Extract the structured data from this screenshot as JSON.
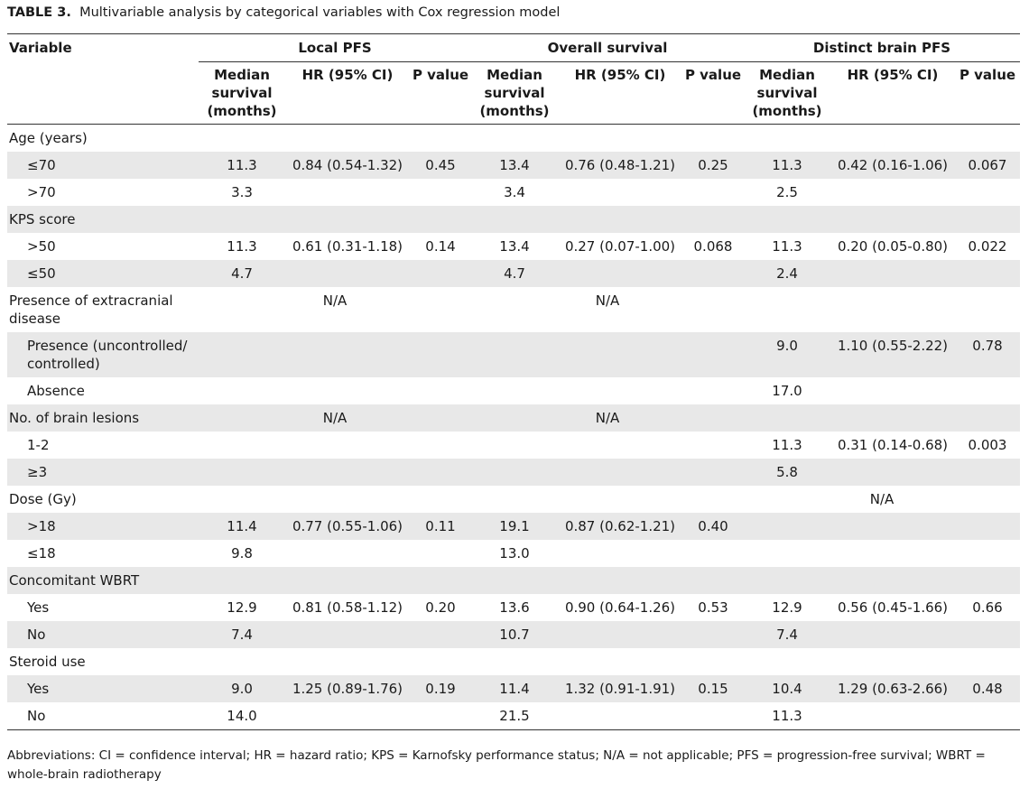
{
  "caption": {
    "label": "TABLE 3.",
    "text": "Multivariable analysis by categorical variables with Cox regression model"
  },
  "header": {
    "variable": "Variable",
    "groups": [
      "Local PFS",
      "Overall survival",
      "Distinct brain PFS"
    ],
    "sub": {
      "median": "Median survival (months)",
      "hr": "HR (95% CI)",
      "p": "P value"
    }
  },
  "rows": [
    {
      "label": "Age (years)",
      "indent": false,
      "shade": false,
      "cells": [
        "",
        "",
        "",
        "",
        "",
        "",
        "",
        "",
        ""
      ]
    },
    {
      "label": "≤70",
      "indent": true,
      "shade": true,
      "cells": [
        "11.3",
        "0.84 (0.54-1.32)",
        "0.45",
        "13.4",
        "0.76 (0.48-1.21)",
        "0.25",
        "11.3",
        "0.42 (0.16-1.06)",
        "0.067"
      ]
    },
    {
      "label": ">70",
      "indent": true,
      "shade": false,
      "cells": [
        "3.3",
        "",
        "",
        "3.4",
        "",
        "",
        "2.5",
        "",
        ""
      ]
    },
    {
      "label": "KPS score",
      "indent": false,
      "shade": true,
      "cells": [
        "",
        "",
        "",
        "",
        "",
        "",
        "",
        "",
        ""
      ]
    },
    {
      "label": ">50",
      "indent": true,
      "shade": false,
      "cells": [
        "11.3",
        "0.61 (0.31-1.18)",
        "0.14",
        "13.4",
        "0.27 (0.07-1.00)",
        "0.068",
        "11.3",
        "0.20 (0.05-0.80)",
        "0.022"
      ]
    },
    {
      "label": "≤50",
      "indent": true,
      "shade": true,
      "cells": [
        "4.7",
        "",
        "",
        "4.7",
        "",
        "",
        "2.4",
        "",
        ""
      ]
    },
    {
      "label": "Presence of extracranial disease",
      "indent": false,
      "shade": false,
      "spans": [
        "N/A",
        "N/A",
        ""
      ]
    },
    {
      "label": "Presence (uncontrolled/ controlled)",
      "indent": true,
      "shade": true,
      "cells": [
        "",
        "",
        "",
        "",
        "",
        "",
        "9.0",
        "1.10 (0.55-2.22)",
        "0.78"
      ]
    },
    {
      "label": "Absence",
      "indent": true,
      "shade": false,
      "cells": [
        "",
        "",
        "",
        "",
        "",
        "",
        "17.0",
        "",
        ""
      ]
    },
    {
      "label": "No. of brain lesions",
      "indent": false,
      "shade": true,
      "spans": [
        "N/A",
        "N/A",
        ""
      ]
    },
    {
      "label": "1-2",
      "indent": true,
      "shade": false,
      "cells": [
        "",
        "",
        "",
        "",
        "",
        "",
        "11.3",
        "0.31 (0.14-0.68)",
        "0.003"
      ]
    },
    {
      "label": "≥3",
      "indent": true,
      "shade": true,
      "cells": [
        "",
        "",
        "",
        "",
        "",
        "",
        "5.8",
        "",
        ""
      ]
    },
    {
      "label": "Dose (Gy)",
      "indent": false,
      "shade": false,
      "spans": [
        "",
        "",
        "N/A"
      ]
    },
    {
      "label": ">18",
      "indent": true,
      "shade": true,
      "cells": [
        "11.4",
        "0.77 (0.55-1.06)",
        "0.11",
        "19.1",
        "0.87 (0.62-1.21)",
        "0.40",
        "",
        "",
        ""
      ]
    },
    {
      "label": "≤18",
      "indent": true,
      "shade": false,
      "cells": [
        "9.8",
        "",
        "",
        "13.0",
        "",
        "",
        "",
        "",
        ""
      ]
    },
    {
      "label": "Concomitant WBRT",
      "indent": false,
      "shade": true,
      "cells": [
        "",
        "",
        "",
        "",
        "",
        "",
        "",
        "",
        ""
      ]
    },
    {
      "label": "Yes",
      "indent": true,
      "shade": false,
      "cells": [
        "12.9",
        "0.81 (0.58-1.12)",
        "0.20",
        "13.6",
        "0.90 (0.64-1.26)",
        "0.53",
        "12.9",
        "0.56 (0.45-1.66)",
        "0.66"
      ]
    },
    {
      "label": "No",
      "indent": true,
      "shade": true,
      "cells": [
        "7.4",
        "",
        "",
        "10.7",
        "",
        "",
        "7.4",
        "",
        ""
      ]
    },
    {
      "label": "Steroid use",
      "indent": false,
      "shade": false,
      "cells": [
        "",
        "",
        "",
        "",
        "",
        "",
        "",
        "",
        ""
      ]
    },
    {
      "label": "Yes",
      "indent": true,
      "shade": true,
      "cells": [
        "9.0",
        "1.25 (0.89-1.76)",
        "0.19",
        "11.4",
        "1.32 (0.91-1.91)",
        "0.15",
        "10.4",
        "1.29 (0.63-2.66)",
        "0.48"
      ]
    },
    {
      "label": "No",
      "indent": true,
      "shade": false,
      "cells": [
        "14.0",
        "",
        "",
        "21.5",
        "",
        "",
        "11.3",
        "",
        ""
      ]
    }
  ],
  "footnote": "Abbreviations: CI = confidence interval; HR = hazard ratio; KPS = Karnofsky performance status; N/A = not applicable; PFS = progression-free survival; WBRT = whole-brain radiotherapy"
}
